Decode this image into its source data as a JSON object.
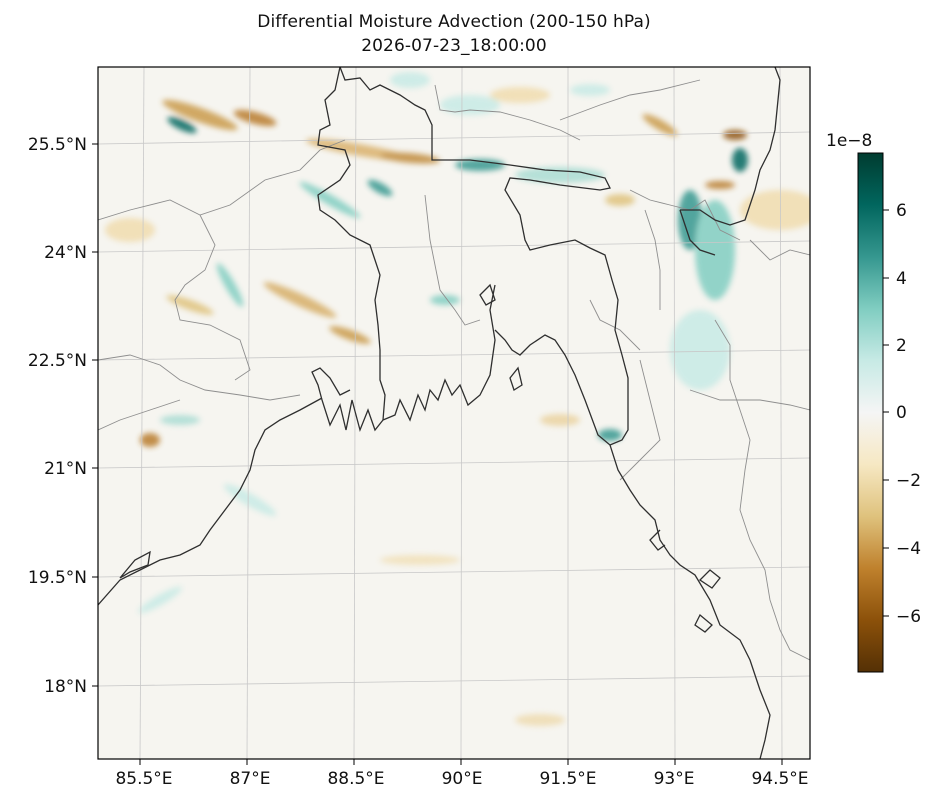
{
  "title": {
    "line1": "Differential Moisture Advection (200-150 hPa)",
    "line2": "2026-07-23_18:00:00"
  },
  "map": {
    "x_ticks": [
      "85.5°E",
      "87°E",
      "88.5°E",
      "90°E",
      "91.5°E",
      "93°E",
      "94.5°E"
    ],
    "y_ticks": [
      "25.5°N",
      "24°N",
      "22.5°N",
      "21°N",
      "19.5°N",
      "18°N"
    ],
    "extent_lon": [
      84.8,
      94.8
    ],
    "extent_lat": [
      16.9,
      26.6
    ],
    "gridlines": true,
    "field": "differential moisture advection",
    "colormap": "BrBG"
  },
  "colorbar": {
    "exponent_label": "1e−8",
    "ticks": [
      "6",
      "4",
      "2",
      "0",
      "−2",
      "−4",
      "−6"
    ],
    "range": [
      -7.5,
      7.5
    ],
    "colors": [
      "#543005",
      "#8c510a",
      "#bf812d",
      "#dfc27d",
      "#f6e8c3",
      "#f5f5f5",
      "#c7eae5",
      "#80cdc1",
      "#35978f",
      "#01665e",
      "#003c30"
    ]
  }
}
